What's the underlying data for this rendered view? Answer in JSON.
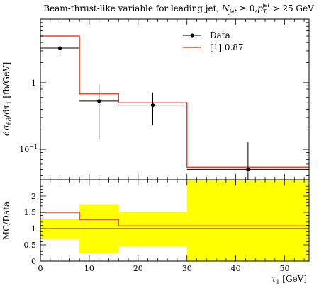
{
  "chart_data": {
    "title": "Beam-thrust-like variable for leading jet, N_jet ≥ 0, p_T^jet > 25 GeV",
    "title_parts": {
      "prefix": "Beam-thrust-like variable for leading jet, ",
      "n": "N",
      "n_sub": "jet",
      "ge": " ≥ 0,",
      "p": "p",
      "p_sup": "jet",
      "p_sub": "T",
      "gt": " > 25 GeV"
    },
    "type": "line",
    "xlabel": "τ₁ [GeV]",
    "xlabel_parts": {
      "sym": "τ",
      "sub": "1",
      "unit": " [GeV]"
    },
    "ylabel_parts": {
      "prefix": "dσ",
      "sub": "fid",
      "mid": "/dτ",
      "sub2": "1",
      "unit": " [fb/GeV]"
    },
    "ratio_ylabel": "MC/Data",
    "xlim": [
      0,
      55
    ],
    "ylim": [
      0.035,
      9
    ],
    "yscale": "log",
    "ratio_ylim": [
      0,
      2.5
    ],
    "x_ticks": [
      "0",
      "10",
      "20",
      "30",
      "40",
      "50"
    ],
    "y_ticks": [
      {
        "value": 1,
        "label": "1"
      },
      {
        "value": 0.1,
        "label": "10",
        "exp": "−1"
      }
    ],
    "ratio_ticks": [
      "0",
      "0.5",
      "1",
      "1.5",
      "2"
    ],
    "bin_edges": [
      0,
      8,
      16,
      30,
      55
    ],
    "data_series": {
      "name": "Data",
      "color": "#000000",
      "x": [
        4,
        12,
        23,
        42.5
      ],
      "y": [
        3.3,
        0.53,
        0.46,
        0.05
      ],
      "y_err_low": [
        2.5,
        0.14,
        0.23,
        0.0001
      ],
      "y_err_high": [
        4.3,
        0.93,
        0.71,
        0.13
      ]
    },
    "mc_series": {
      "name": "[1] 0.87",
      "color": "#e8462b",
      "values": [
        5.0,
        0.68,
        0.5,
        0.054
      ]
    },
    "ratio": {
      "mc_values": [
        1.5,
        1.28,
        1.08,
        1.08
      ],
      "band_low": [
        0.67,
        0.25,
        0.45,
        0.0
      ],
      "band_high": [
        1.3,
        1.75,
        1.52,
        2.5
      ],
      "band_color": "#ffff00"
    },
    "legend_position": "top-right"
  }
}
